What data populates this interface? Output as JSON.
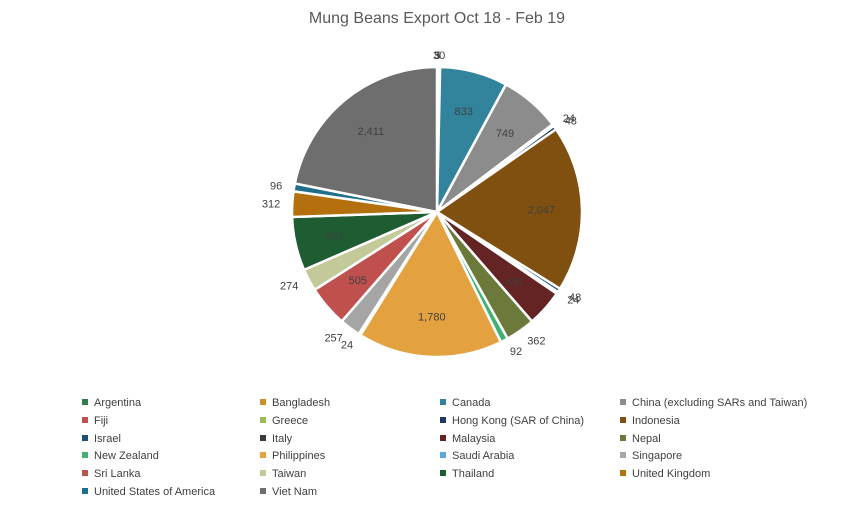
{
  "chart_data": {
    "type": "pie",
    "title": "Mung Beans Export Oct 18 - Feb  19",
    "slices": [
      {
        "name": "Argentina",
        "value": 5,
        "color": "#2e7d4f"
      },
      {
        "name": "Bangladesh",
        "value": 30,
        "color": "#c8902d"
      },
      {
        "name": "Canada",
        "value": 833,
        "color": "#31849b"
      },
      {
        "name": "China (excluding SARs and Taiwan)",
        "value": 749,
        "color": "#8c8c8c"
      },
      {
        "name": "Fiji",
        "value": 24,
        "color": "#c0504d"
      },
      {
        "name": "Greece",
        "value": 3,
        "color": "#9bbb59"
      },
      {
        "name": "Hong Kong (SAR of China)",
        "value": 48,
        "color": "#1f3864"
      },
      {
        "name": "Indonesia",
        "value": 2047,
        "color": "#7f5010"
      },
      {
        "name": "Israel",
        "value": 48,
        "color": "#1f4e79"
      },
      {
        "name": "Italy",
        "value": 24,
        "color": "#3a3a3a"
      },
      {
        "name": "Malaysia",
        "value": 451,
        "color": "#632423"
      },
      {
        "name": "Nepal",
        "value": 362,
        "color": "#6b7a3a"
      },
      {
        "name": "New Zealand",
        "value": 92,
        "color": "#3cb371"
      },
      {
        "name": "Philippines",
        "value": 1780,
        "color": "#e3a23f"
      },
      {
        "name": "Saudi Arabia",
        "value": 24,
        "color": "#5aa9d6"
      },
      {
        "name": "Singapore",
        "value": 257,
        "color": "#a5a5a5"
      },
      {
        "name": "Sri Lanka",
        "value": 505,
        "color": "#c0504d"
      },
      {
        "name": "Taiwan",
        "value": 274,
        "color": "#c4c99a"
      },
      {
        "name": "Thailand",
        "value": 661,
        "color": "#1e5c32"
      },
      {
        "name": "United Kingdom",
        "value": 312,
        "color": "#b5700e"
      },
      {
        "name": "United States of America",
        "value": 96,
        "color": "#1f6e8c"
      },
      {
        "name": "Viet Nam",
        "value": 2411,
        "color": "#6e6e6e"
      }
    ],
    "data_labels": [
      "5",
      "30",
      "833",
      "749",
      "24",
      "3",
      "48",
      "2,047",
      "48",
      "24",
      "451",
      "362",
      "92",
      "1,780",
      "24",
      "257",
      "505",
      "274",
      "661",
      "312",
      "96",
      "2,411"
    ],
    "slice_order": [
      "Greece",
      "Argentina",
      "Bangladesh",
      "Canada",
      "China (excluding SARs and Taiwan)",
      "Fiji",
      "Hong Kong (SAR of China)",
      "Indonesia",
      "Israel",
      "Italy",
      "Malaysia",
      "Nepal",
      "New Zealand",
      "Philippines",
      "Saudi Arabia",
      "Singapore",
      "Sri Lanka",
      "Taiwan",
      "Thailand",
      "United Kingdom",
      "United States of America",
      "Viet Nam"
    ],
    "legend_position": "bottom"
  }
}
